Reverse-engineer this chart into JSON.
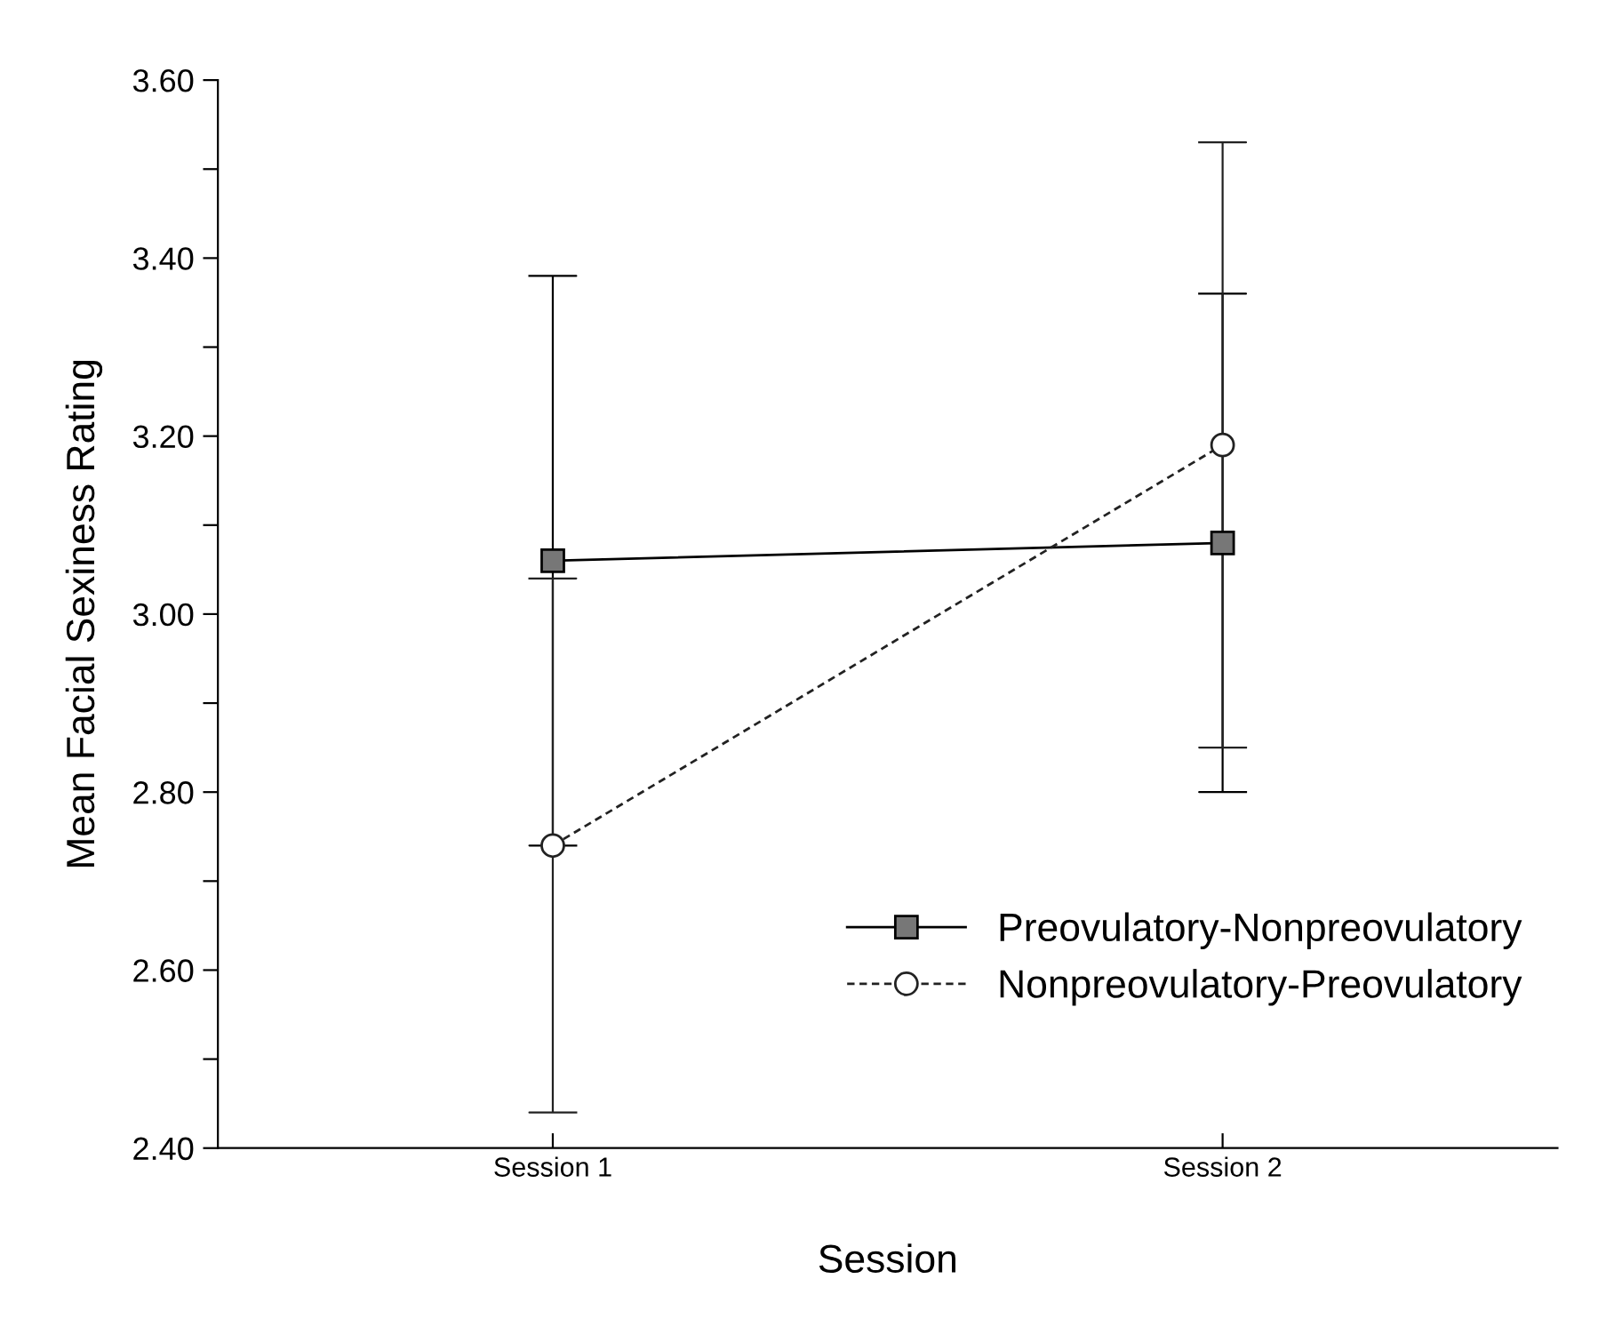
{
  "chart_data": {
    "type": "line",
    "xlabel": "Session",
    "ylabel": "Mean Facial Sexiness Rating",
    "categories": [
      "Session 1",
      "Session 2"
    ],
    "series": [
      {
        "name": "Preovulatory-Nonpreovulatory",
        "color": "#000000",
        "values": [
          3.06,
          3.08
        ],
        "errors": [
          0.32,
          0.28
        ],
        "marker": "square",
        "line_style": "solid"
      },
      {
        "name": "Nonpreovulatory-Preovulatory",
        "color": "#222222",
        "values": [
          2.74,
          3.19
        ],
        "errors": [
          0.3,
          0.34
        ],
        "marker": "circle",
        "line_style": "dashed"
      }
    ],
    "ylim": [
      2.4,
      3.6
    ],
    "yticks": [
      {
        "value": 2.4,
        "label": "2.40"
      },
      {
        "value": 2.5,
        "label": null
      },
      {
        "value": 2.6,
        "label": "2.60"
      },
      {
        "value": 2.7,
        "label": null
      },
      {
        "value": 2.8,
        "label": "2.80"
      },
      {
        "value": 2.9,
        "label": null
      },
      {
        "value": 3.0,
        "label": "3.00"
      },
      {
        "value": 3.1,
        "label": null
      },
      {
        "value": 3.2,
        "label": "3.20"
      },
      {
        "value": 3.3,
        "label": null
      },
      {
        "value": 3.4,
        "label": "3.40"
      },
      {
        "value": 3.5,
        "label": null
      },
      {
        "value": 3.6,
        "label": "3.60"
      }
    ],
    "grid": false,
    "legend": "bottom right"
  }
}
